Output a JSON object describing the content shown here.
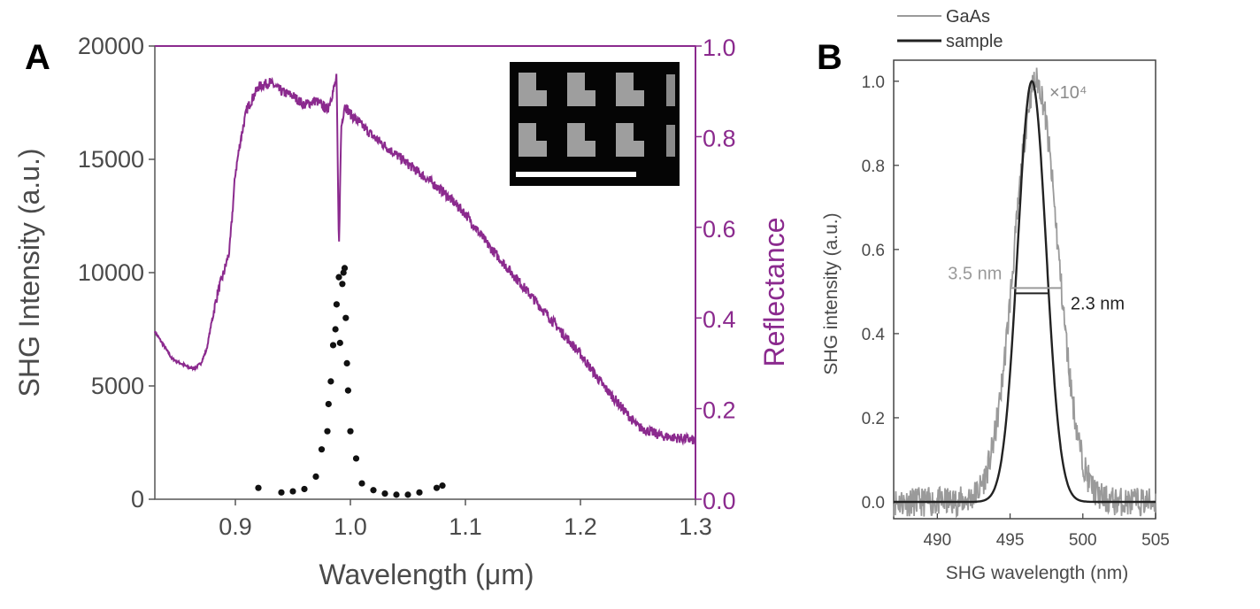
{
  "panels": {
    "a_label": "A",
    "b_label": "B"
  },
  "colors": {
    "reflectance": "#8b2a8e",
    "shg_points": "#111111",
    "gaas": "#9a9a9a",
    "sample": "#222222",
    "axis_a": "#555555",
    "axis_b": "#444444"
  },
  "chart_data": [
    {
      "id": "A",
      "type": "scatter",
      "xlabel": "Wavelength (μm)",
      "ylabel": "SHG Intensity (a.u.)",
      "y2label": "Reflectance",
      "xlim": [
        0.83,
        1.3
      ],
      "ylim": [
        0,
        20000
      ],
      "y2lim": [
        0.0,
        1.0
      ],
      "xticks": [
        "0.9",
        "1.0",
        "1.1",
        "1.2",
        "1.3"
      ],
      "xtick_values": [
        0.9,
        1.0,
        1.1,
        1.2,
        1.3
      ],
      "yticks": [
        "0",
        "5000",
        "10000",
        "15000",
        "20000"
      ],
      "ytick_values": [
        0,
        5000,
        10000,
        15000,
        20000
      ],
      "y2ticks": [
        "0.0",
        "0.2",
        "0.4",
        "0.6",
        "0.8",
        "1.0"
      ],
      "y2tick_values": [
        0.0,
        0.2,
        0.4,
        0.6,
        0.8,
        1.0
      ],
      "inset": "SEM image of L-shaped nanostructure array",
      "series": [
        {
          "axis": "left",
          "style": "points",
          "x": [
            0.92,
            0.94,
            0.95,
            0.96,
            0.97,
            0.975,
            0.98,
            0.981,
            0.983,
            0.985,
            0.987,
            0.988,
            0.99,
            0.991,
            0.993,
            0.994,
            0.995,
            0.996,
            0.997,
            0.998,
            1.0,
            1.005,
            1.01,
            1.02,
            1.03,
            1.04,
            1.05,
            1.06,
            1.075,
            1.08
          ],
          "y": [
            500,
            300,
            350,
            450,
            1000,
            2200,
            3000,
            4200,
            5200,
            6800,
            7500,
            8600,
            9800,
            6900,
            9500,
            10000,
            10200,
            8000,
            6000,
            4800,
            3000,
            1800,
            700,
            400,
            250,
            200,
            200,
            300,
            500,
            600
          ]
        },
        {
          "axis": "right",
          "style": "line",
          "x": [
            0.83,
            0.845,
            0.86,
            0.865,
            0.87,
            0.875,
            0.88,
            0.885,
            0.89,
            0.895,
            0.9,
            0.905,
            0.91,
            0.92,
            0.93,
            0.94,
            0.95,
            0.96,
            0.97,
            0.98,
            0.985,
            0.988,
            0.99,
            0.992,
            0.995,
            1.0,
            1.02,
            1.05,
            1.08,
            1.1,
            1.12,
            1.15,
            1.18,
            1.2,
            1.22,
            1.25,
            1.27,
            1.3
          ],
          "y": [
            0.37,
            0.31,
            0.29,
            0.29,
            0.3,
            0.33,
            0.4,
            0.46,
            0.5,
            0.55,
            0.72,
            0.8,
            0.86,
            0.91,
            0.92,
            0.9,
            0.89,
            0.87,
            0.88,
            0.86,
            0.9,
            0.93,
            0.55,
            0.82,
            0.87,
            0.85,
            0.8,
            0.74,
            0.68,
            0.63,
            0.56,
            0.47,
            0.38,
            0.32,
            0.25,
            0.16,
            0.14,
            0.13
          ]
        }
      ]
    },
    {
      "id": "B",
      "type": "line",
      "xlabel": "SHG wavelength (nm)",
      "ylabel": "SHG intensity (a.u.)",
      "xlim": [
        487,
        505
      ],
      "ylim": [
        -0.04,
        1.05
      ],
      "xticks": [
        "490",
        "495",
        "500",
        "505"
      ],
      "xtick_values": [
        490,
        495,
        500,
        505
      ],
      "yticks": [
        "0.0",
        "0.2",
        "0.4",
        "0.6",
        "0.8",
        "1.0"
      ],
      "ytick_values": [
        0.0,
        0.2,
        0.4,
        0.6,
        0.8,
        1.0
      ],
      "legend": {
        "position": "top-left-outside",
        "entries": [
          "GaAs",
          "sample"
        ]
      },
      "annotations": {
        "scale": "×10⁴",
        "fwhm_gaas": "3.5 nm",
        "fwhm_sample": "2.3 nm"
      },
      "series": [
        {
          "name": "GaAs",
          "center": 496.8,
          "fwhm": 3.5,
          "peak": 1.0
        },
        {
          "name": "sample",
          "center": 496.5,
          "fwhm": 2.3,
          "peak": 1.0
        }
      ]
    }
  ]
}
